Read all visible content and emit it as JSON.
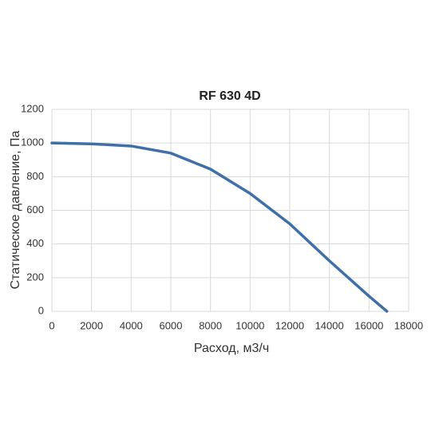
{
  "chart_data": {
    "type": "line",
    "title": "RF 630 4D",
    "x_label": "Расход, м3/ч",
    "y_label": "Статическое давление, Па",
    "x": [
      0,
      2000,
      4000,
      6000,
      8000,
      10000,
      12000,
      14000,
      16000,
      16900
    ],
    "series": [
      {
        "name": "RF 630 4D",
        "color": "#3e6fa8",
        "values": [
          1000,
          995,
          982,
          940,
          845,
          700,
          520,
          300,
          90,
          0
        ]
      }
    ],
    "xlim": [
      0,
      18000
    ],
    "xticks": [
      0,
      2000,
      4000,
      6000,
      8000,
      10000,
      12000,
      14000,
      16000,
      18000
    ],
    "ylim": [
      0,
      1200
    ],
    "yticks": [
      0,
      200,
      400,
      600,
      800,
      1000,
      1200
    ],
    "grid": true
  }
}
